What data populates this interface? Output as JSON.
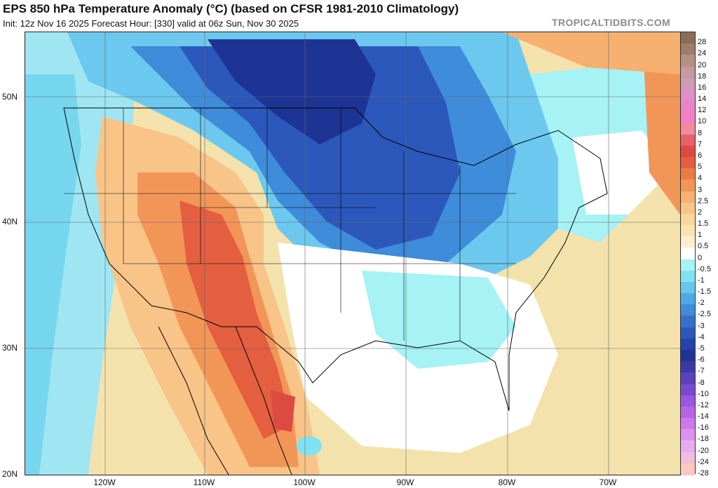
{
  "header": {
    "title": "EPS 850 hPa Temperature Anomaly (°C) (based on CFSR 1981-2010 Climatology)",
    "subtitle": "Init: 12z Nov 16 2025   Forecast Hour: [330]   valid at 06z Sun, Nov 30 2025",
    "brand": "TROPICALTIDBITS.COM"
  },
  "map": {
    "region": "Contiguous United States",
    "lat_labels": [
      "50N",
      "40N",
      "30N",
      "20N"
    ],
    "lon_labels": [
      "120W",
      "110W",
      "100W",
      "90W",
      "80W",
      "70W"
    ]
  },
  "legend": {
    "unit": "°C",
    "levels": [
      {
        "label": "28",
        "color": "#8a6c57"
      },
      {
        "label": "24",
        "color": "#a07e6c"
      },
      {
        "label": "20",
        "color": "#b58f84"
      },
      {
        "label": "18",
        "color": "#c39aa0"
      },
      {
        "label": "16",
        "color": "#cf9ab4"
      },
      {
        "label": "14",
        "color": "#de8fc4"
      },
      {
        "label": "12",
        "color": "#ea84c8"
      },
      {
        "label": "10",
        "color": "#f27fc4"
      },
      {
        "label": "8",
        "color": "#f08a9c"
      },
      {
        "label": "7",
        "color": "#e8606a"
      },
      {
        "label": "6",
        "color": "#dd4a42"
      },
      {
        "label": "5",
        "color": "#e45e40"
      },
      {
        "label": "4",
        "color": "#ec7a48"
      },
      {
        "label": "3",
        "color": "#f29658"
      },
      {
        "label": "2.5",
        "color": "#f6b070"
      },
      {
        "label": "2",
        "color": "#f8c488"
      },
      {
        "label": "1.5",
        "color": "#f9d69e"
      },
      {
        "label": "1",
        "color": "#fae4b4"
      },
      {
        "label": "0.5",
        "color": "#fbefcf"
      },
      {
        "label": "0",
        "color": "#ffffff"
      },
      {
        "label": "-0.5",
        "color": "#a6f2f4"
      },
      {
        "label": "-1",
        "color": "#80e2f0"
      },
      {
        "label": "-1.5",
        "color": "#62c8ee"
      },
      {
        "label": "-2",
        "color": "#4eaae6"
      },
      {
        "label": "-2.5",
        "color": "#3e8cda"
      },
      {
        "label": "-3",
        "color": "#3470cc"
      },
      {
        "label": "-4",
        "color": "#2c58bc"
      },
      {
        "label": "-5",
        "color": "#2444a8"
      },
      {
        "label": "-6",
        "color": "#1e3494"
      },
      {
        "label": "-7",
        "color": "#3a3aa6"
      },
      {
        "label": "-8",
        "color": "#5a42bc"
      },
      {
        "label": "-10",
        "color": "#7a4ad0"
      },
      {
        "label": "-12",
        "color": "#9a56de"
      },
      {
        "label": "-14",
        "color": "#b664e6"
      },
      {
        "label": "-16",
        "color": "#cc78ec"
      },
      {
        "label": "-18",
        "color": "#dc92ee"
      },
      {
        "label": "-20",
        "color": "#e6aaf0"
      },
      {
        "label": "-24",
        "color": "#f2bcd8"
      },
      {
        "label": "-28",
        "color": "#fcc8c0"
      }
    ]
  }
}
